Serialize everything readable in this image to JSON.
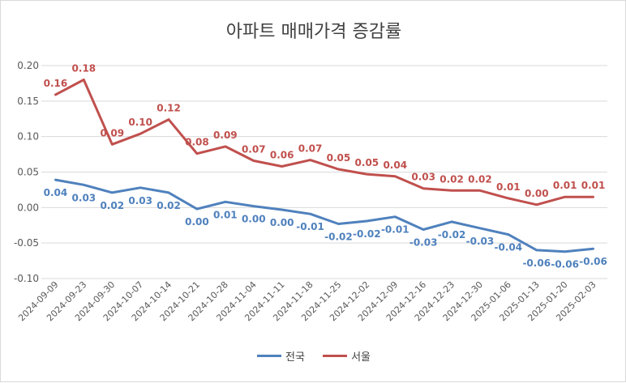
{
  "chart_data": {
    "type": "line",
    "title": "아파트 매매가격 증감률",
    "xlabel": "",
    "ylabel": "",
    "ylim": [
      -0.1,
      0.2
    ],
    "yticks": [
      "0.20",
      "0.15",
      "0.10",
      "0.05",
      "0.00",
      "-0.05",
      "-0.10"
    ],
    "ytick_values": [
      0.2,
      0.15,
      0.1,
      0.05,
      0.0,
      -0.05,
      -0.1
    ],
    "grid": true,
    "legend_position": "bottom",
    "categories": [
      "2024-09-09",
      "2024-09-23",
      "2024-09-30",
      "2024-10-07",
      "2024-10-14",
      "2024-10-21",
      "2024-10-28",
      "2024-11-04",
      "2024-11-11",
      "2024-11-18",
      "2024-11-25",
      "2024-12-02",
      "2024-12-09",
      "2024-12-16",
      "2024-12-23",
      "2024-12-30",
      "2025-01-06",
      "2025-01-13",
      "2025-01-20",
      "2025-02-03"
    ],
    "series": [
      {
        "name": "전국",
        "color": "#4f81bd",
        "values": [
          0.039,
          0.032,
          0.021,
          0.028,
          0.021,
          -0.002,
          0.008,
          0.002,
          -0.003,
          -0.009,
          -0.023,
          -0.019,
          -0.013,
          -0.031,
          -0.02,
          -0.029,
          -0.038,
          -0.06,
          -0.062,
          -0.058
        ],
        "labels": [
          "0.04",
          "0.03",
          "0.02",
          "0.03",
          "0.02",
          "0.00",
          "0.01",
          "0.00",
          "0.00",
          "-0.01",
          "-0.02",
          "-0.02",
          "-0.01",
          "-0.03",
          "-0.02",
          "-0.03",
          "-0.04",
          "-0.06",
          "-0.06",
          "-0.06"
        ]
      },
      {
        "name": "서울",
        "color": "#c0504d",
        "values": [
          0.159,
          0.18,
          0.089,
          0.104,
          0.124,
          0.076,
          0.086,
          0.066,
          0.058,
          0.067,
          0.054,
          0.047,
          0.044,
          0.027,
          0.024,
          0.024,
          0.013,
          0.004,
          0.015,
          0.015
        ],
        "labels": [
          "0.16",
          "0.18",
          "0.09",
          "0.10",
          "0.12",
          "0.08",
          "0.09",
          "0.07",
          "0.06",
          "0.07",
          "0.05",
          "0.05",
          "0.04",
          "0.03",
          "0.02",
          "0.02",
          "0.01",
          "0.00",
          "0.01",
          "0.01"
        ]
      }
    ]
  }
}
